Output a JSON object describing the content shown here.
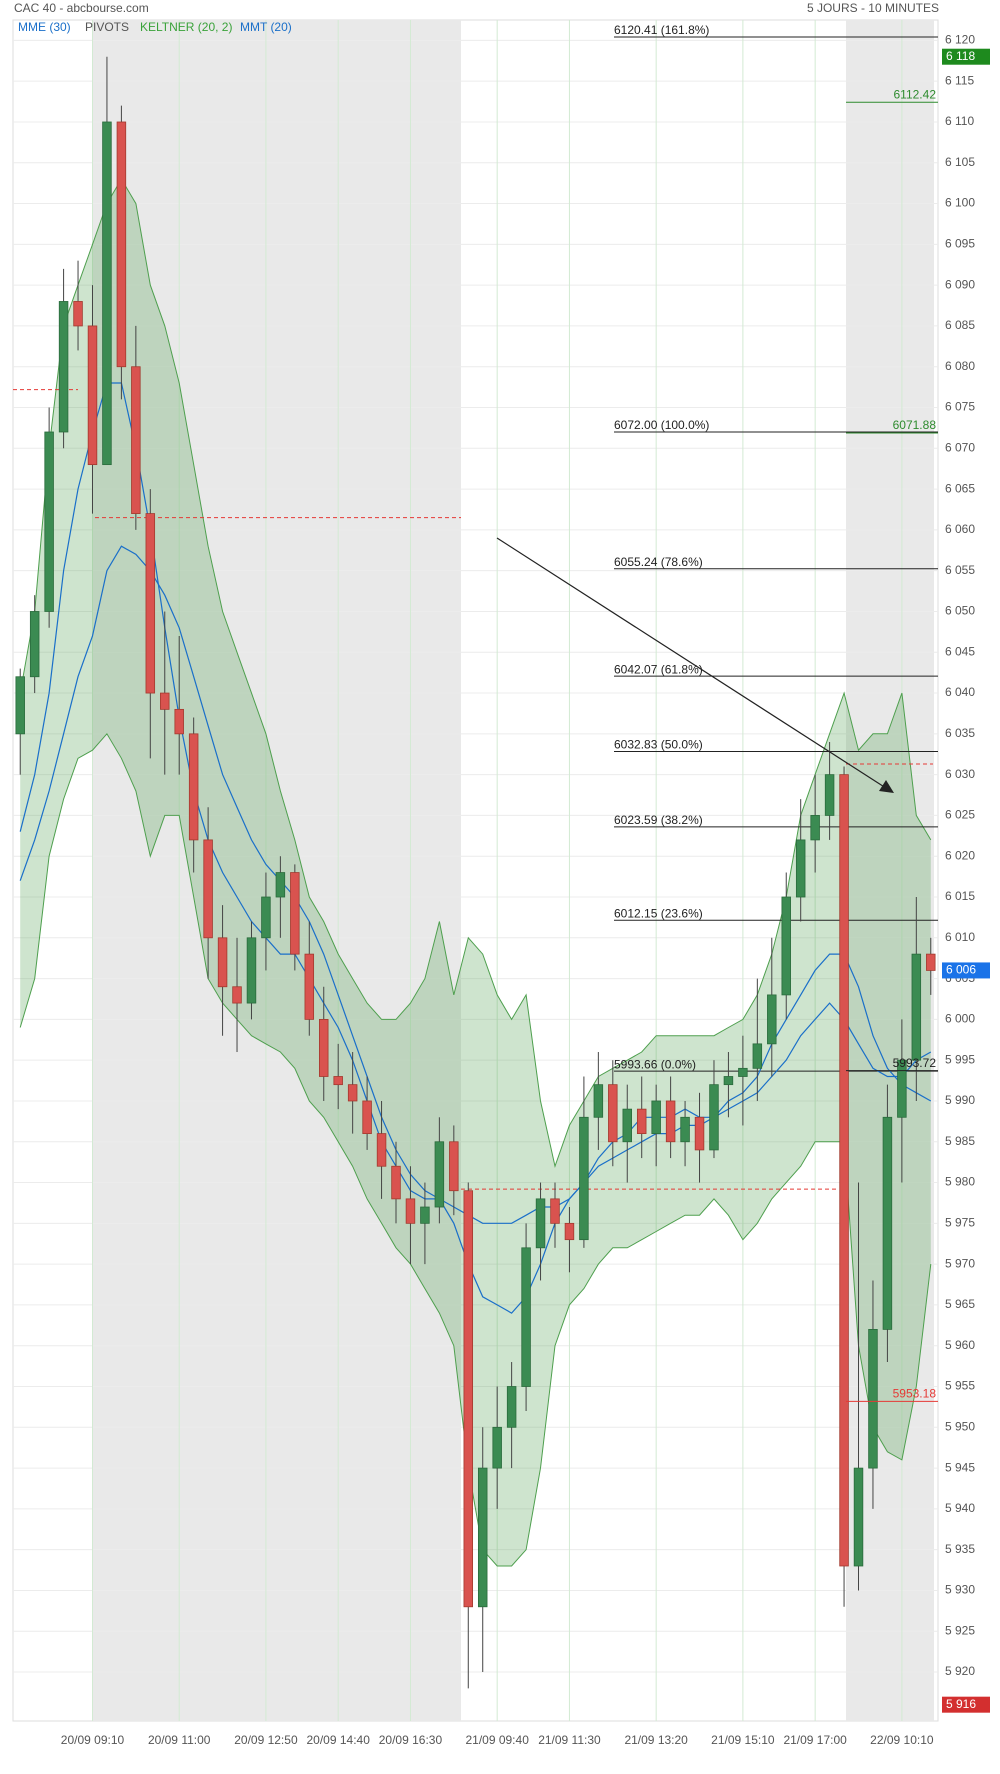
{
  "chart_data": {
    "type": "candlestick",
    "title": "CAC 40 - abcbourse.com",
    "subtitle": "5 JOURS - 10 MINUTES",
    "categories": [
      null,
      null,
      null,
      null,
      null,
      "20/09 09:10",
      null,
      null,
      null,
      null,
      null,
      "20/09 11:00",
      null,
      null,
      null,
      null,
      null,
      "20/09 12:50",
      null,
      null,
      null,
      null,
      "20/09 14:40",
      null,
      null,
      null,
      null,
      "20/09 16:30",
      null,
      null,
      null,
      null,
      null,
      "21/09 09:40",
      null,
      null,
      null,
      null,
      "21/09 11:30",
      null,
      null,
      null,
      null,
      null,
      "21/09 13:20",
      null,
      null,
      null,
      null,
      null,
      "21/09 15:10",
      null,
      null,
      null,
      null,
      "21/09 17:00",
      null,
      null,
      null,
      null,
      null,
      "22/09 10:10",
      null,
      null
    ],
    "open": [
      6035,
      6042,
      6050,
      6072,
      6088,
      6085,
      6068,
      6110,
      6080,
      6062,
      6040,
      6038,
      6035,
      6022,
      6010,
      6004,
      6002,
      6010,
      6015,
      6018,
      6008,
      6000,
      5993,
      5992,
      5990,
      5986,
      5982,
      5978,
      5975,
      5977,
      5985,
      5979,
      5928,
      5945,
      5950,
      5955,
      5972,
      5978,
      5975,
      5973,
      5988,
      5992,
      5985,
      5989,
      5986,
      5990,
      5985,
      5988,
      5984,
      5992,
      5993,
      5994,
      5997,
      6003,
      6015,
      6022,
      6025,
      6030,
      5933,
      5945,
      5962,
      5988,
      5995,
      6008
    ],
    "high": [
      6043,
      6052,
      6075,
      6092,
      6093,
      6090,
      6118,
      6112,
      6085,
      6065,
      6050,
      6047,
      6037,
      6026,
      6014,
      6010,
      6012,
      6018,
      6020,
      6019,
      6012,
      6004,
      5997,
      5996,
      5993,
      5990,
      5985,
      5982,
      5980,
      5988,
      5987,
      5980,
      5950,
      5955,
      5958,
      5975,
      5980,
      5980,
      5977,
      5993,
      5996,
      5995,
      5992,
      5993,
      5992,
      5993,
      5990,
      5991,
      5995,
      5996,
      5998,
      6005,
      6010,
      6018,
      6027,
      6030,
      6034,
      6031,
      5980,
      5968,
      5992,
      6000,
      6015,
      6010
    ],
    "low": [
      6030,
      6040,
      6048,
      6070,
      6082,
      6062,
      6068,
      6076,
      6060,
      6032,
      6030,
      6030,
      6018,
      6005,
      5998,
      5996,
      6000,
      6006,
      6010,
      6006,
      5998,
      5990,
      5989,
      5986,
      5984,
      5978,
      5975,
      5970,
      5970,
      5975,
      5976,
      5918,
      5920,
      5940,
      5945,
      5952,
      5968,
      5972,
      5969,
      5972,
      5984,
      5982,
      5980,
      5983,
      5982,
      5983,
      5982,
      5980,
      5983,
      5988,
      5987,
      5990,
      5993,
      6000,
      6012,
      6018,
      6022,
      5928,
      5930,
      5940,
      5958,
      5980,
      5990,
      6003
    ],
    "close": [
      6042,
      6050,
      6072,
      6088,
      6085,
      6068,
      6110,
      6080,
      6062,
      6040,
      6038,
      6035,
      6022,
      6010,
      6004,
      6002,
      6010,
      6015,
      6018,
      6008,
      6000,
      5993,
      5992,
      5990,
      5986,
      5982,
      5978,
      5975,
      5977,
      5985,
      5979,
      5928,
      5945,
      5950,
      5955,
      5972,
      5978,
      5975,
      5973,
      5988,
      5992,
      5985,
      5989,
      5986,
      5990,
      5985,
      5988,
      5984,
      5992,
      5993,
      5994,
      5997,
      6003,
      6015,
      6022,
      6025,
      6030,
      5933,
      5945,
      5962,
      5988,
      5995,
      6008,
      6006
    ],
    "up_color": "#3b8b52",
    "down_color": "#d9534f",
    "indicators": [
      {
        "name": "MME (30)",
        "color": "#1a6fc9",
        "values": [
          6017,
          6022,
          6028,
          6035,
          6042,
          6047,
          6055,
          6058,
          6057,
          6055,
          6052,
          6048,
          6042,
          6036,
          6030,
          6026,
          6022,
          6019,
          6017,
          6015,
          6012,
          6008,
          6003,
          5998,
          5993,
          5988,
          5984,
          5981,
          5979,
          5978,
          5977,
          5976,
          5975,
          5975,
          5975,
          5976,
          5977,
          5977,
          5978,
          5980,
          5982,
          5983,
          5984,
          5985,
          5986,
          5986,
          5987,
          5987,
          5988,
          5989,
          5990,
          5991,
          5993,
          5995,
          5998,
          6000,
          6002,
          6000,
          5997,
          5994,
          5993,
          5993,
          5995,
          5996
        ]
      },
      {
        "name": "MMT (20)",
        "color": "#1a6fc9",
        "values": [
          6023,
          6030,
          6040,
          6055,
          6065,
          6072,
          6078,
          6078,
          6070,
          6060,
          6048,
          6037,
          6028,
          6022,
          6018,
          6015,
          6012,
          6010,
          6008,
          6008,
          6005,
          6002,
          5999,
          5995,
          5990,
          5985,
          5982,
          5979,
          5978,
          5978,
          5975,
          5970,
          5966,
          5965,
          5964,
          5966,
          5970,
          5975,
          5978,
          5980,
          5983,
          5985,
          5986,
          5988,
          5988,
          5988,
          5989,
          5988,
          5988,
          5990,
          5991,
          5993,
          5997,
          6000,
          6003,
          6006,
          6008,
          6008,
          6004,
          5998,
          5994,
          5992,
          5991,
          5990
        ]
      }
    ],
    "keltner": {
      "name": "KELTNER (20, 2)",
      "color": "#4e9f4e",
      "upper": [
        6040,
        6050,
        6070,
        6085,
        6090,
        6095,
        6100,
        6103,
        6100,
        6090,
        6085,
        6078,
        6068,
        6058,
        6050,
        6045,
        6040,
        6035,
        6028,
        6022,
        6015,
        6012,
        6008,
        6005,
        6002,
        6000,
        6000,
        6002,
        6005,
        6012,
        6003,
        6010,
        6008,
        6003,
        6000,
        6003,
        5990,
        5982,
        5987,
        5990,
        5993,
        5994,
        5995,
        5996,
        5998,
        5998,
        5998,
        5998,
        5998,
        5999,
        6000,
        6003,
        6008,
        6015,
        6025,
        6030,
        6035,
        6040,
        6033,
        6035,
        6035,
        6040,
        6025,
        6022
      ],
      "lower": [
        5999,
        6005,
        6020,
        6027,
        6032,
        6033,
        6035,
        6032,
        6028,
        6020,
        6025,
        6025,
        6015,
        6005,
        6002,
        6000,
        5998,
        5997,
        5996,
        5994,
        5990,
        5988,
        5985,
        5982,
        5978,
        5975,
        5972,
        5970,
        5967,
        5964,
        5960,
        5945,
        5935,
        5933,
        5933,
        5935,
        5945,
        5960,
        5965,
        5967,
        5970,
        5972,
        5972,
        5973,
        5974,
        5975,
        5976,
        5976,
        5978,
        5976,
        5973,
        5975,
        5978,
        5980,
        5982,
        5985,
        5985,
        5985,
        5960,
        5950,
        5947,
        5946,
        5955,
        5970
      ]
    },
    "pivots": {
      "name": "PIVOTS",
      "color": "#e53935",
      "values": [
        6077.2,
        6061.5,
        5979.2,
        6031.3
      ]
    },
    "fibonacci": [
      {
        "value": 6120.41,
        "label": "6120.41  (161.8%)"
      },
      {
        "value": 6072,
        "label": "6072.00  (100.0%)"
      },
      {
        "value": 6055.24,
        "label": "6055.24  (78.6%)"
      },
      {
        "value": 6042.07,
        "label": "6042.07  (61.8%)"
      },
      {
        "value": 6032.83,
        "label": "6032.83  (50.0%)"
      },
      {
        "value": 6023.59,
        "label": "6023.59  (38.2%)"
      },
      {
        "value": 6012.15,
        "label": "6012.15  (23.6%)"
      },
      {
        "value": 5993.66,
        "label": "5993.66  (0.0%)"
      }
    ],
    "levels": [
      {
        "value": 6112.42,
        "color": "#2e8b2e"
      },
      {
        "value": 6071.88,
        "color": "#2e8b2e"
      },
      {
        "value": 5993.72,
        "color": "#222222"
      },
      {
        "value": 5953.18,
        "color": "#e53935"
      }
    ],
    "badges": [
      {
        "value": 6118,
        "label": "6 118",
        "color": "#1e8a1e"
      },
      {
        "value": 6006,
        "label": "6 006",
        "color": "#1a73e8"
      },
      {
        "value": 5916,
        "label": "5 916",
        "color": "#d32f2f"
      }
    ],
    "ylim": [
      5914,
      6122.5
    ],
    "yticks": [
      {
        "value": 5920,
        "label": "5 920"
      },
      {
        "value": 5925,
        "label": "5 925"
      },
      {
        "value": 5930,
        "label": "5 930"
      },
      {
        "value": 5935,
        "label": "5 935"
      },
      {
        "value": 5940,
        "label": "5 940"
      },
      {
        "value": 5945,
        "label": "5 945"
      },
      {
        "value": 5950,
        "label": "5 950"
      },
      {
        "value": 5955,
        "label": "5 955"
      },
      {
        "value": 5960,
        "label": "5 960"
      },
      {
        "value": 5965,
        "label": "5 965"
      },
      {
        "value": 5970,
        "label": "5 970"
      },
      {
        "value": 5975,
        "label": "5 975"
      },
      {
        "value": 5980,
        "label": "5 980"
      },
      {
        "value": 5985,
        "label": "5 985"
      },
      {
        "value": 5990,
        "label": "5 990"
      },
      {
        "value": 5995,
        "label": "5 995"
      },
      {
        "value": 6000,
        "label": "6 000"
      },
      {
        "value": 6005,
        "label": "6 005"
      },
      {
        "value": 6010,
        "label": "6 010"
      },
      {
        "value": 6015,
        "label": "6 015"
      },
      {
        "value": 6020,
        "label": "6 020"
      },
      {
        "value": 6025,
        "label": "6 025"
      },
      {
        "value": 6030,
        "label": "6 030"
      },
      {
        "value": 6035,
        "label": "6 035"
      },
      {
        "value": 6040,
        "label": "6 040"
      },
      {
        "value": 6045,
        "label": "6 045"
      },
      {
        "value": 6050,
        "label": "6 050"
      },
      {
        "value": 6055,
        "label": "6 055"
      },
      {
        "value": 6060,
        "label": "6 060"
      },
      {
        "value": 6065,
        "label": "6 065"
      },
      {
        "value": 6070,
        "label": "6 070"
      },
      {
        "value": 6075,
        "label": "6 075"
      },
      {
        "value": 6080,
        "label": "6 080"
      },
      {
        "value": 6085,
        "label": "6 085"
      },
      {
        "value": 6090,
        "label": "6 090"
      },
      {
        "value": 6095,
        "label": "6 095"
      },
      {
        "value": 6100,
        "label": "6 100"
      },
      {
        "value": 6105,
        "label": "6 105"
      },
      {
        "value": 6110,
        "label": "6 110"
      },
      {
        "value": 6115,
        "label": "6 115"
      },
      {
        "value": 6120,
        "label": "6 120"
      }
    ],
    "grid": true
  }
}
